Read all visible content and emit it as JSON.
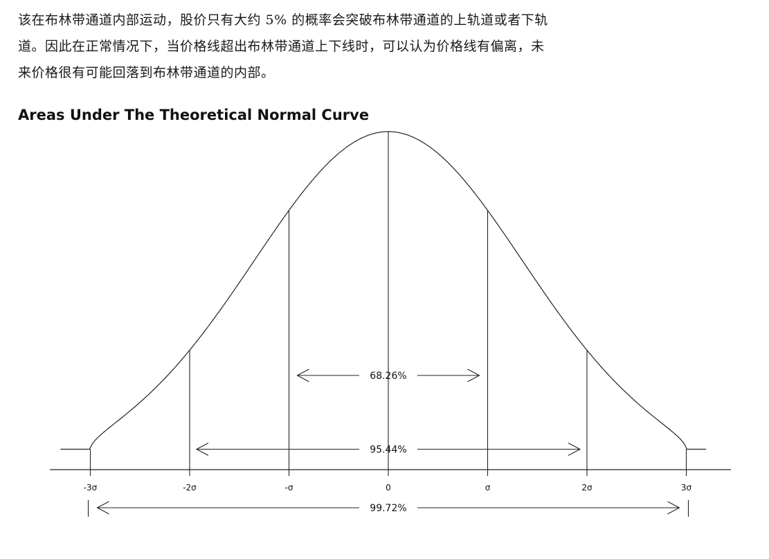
{
  "text": {
    "lines": [
      "该在布林带通道内部运动，股价只有大约 5% 的概率会突破布林带通道的上轨道或者下轨",
      "道。因此在正常情况下，当价格线超出布林带通道上下线时，可以认为价格线有偏离，未",
      "来价格很有可能回落到布林带通道的内部。"
    ]
  },
  "chart_data": {
    "type": "line",
    "title": "Areas Under The Theoretical Normal Curve",
    "x_ticks": [
      {
        "value": -3,
        "label": "-3σ"
      },
      {
        "value": -2,
        "label": "-2σ"
      },
      {
        "value": -1,
        "label": "-σ"
      },
      {
        "value": 0,
        "label": "0"
      },
      {
        "value": 1,
        "label": "σ"
      },
      {
        "value": 2,
        "label": "2σ"
      },
      {
        "value": 3,
        "label": "3σ"
      }
    ],
    "xlim": [
      -3.3,
      3.2
    ],
    "intervals": [
      {
        "from": -1,
        "to": 1,
        "label": "68.26%"
      },
      {
        "from": -2,
        "to": 2,
        "label": "95.44%"
      },
      {
        "from": -3,
        "to": 3,
        "label": "99.72%"
      }
    ],
    "grid": false
  }
}
